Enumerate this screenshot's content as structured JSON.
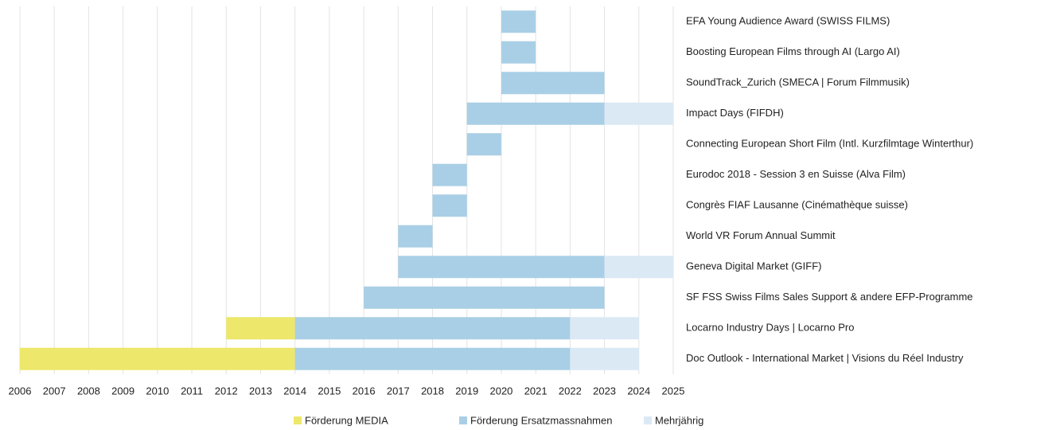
{
  "chart_data": {
    "type": "gantt",
    "categories": [
      "EFA Young Audience Award (SWISS FILMS)",
      "Boosting European Films through AI (Largo AI)",
      "SoundTrack_Zurich (SMECA | Forum Filmmusik)",
      "Impact Days (FIFDH)",
      "Connecting European Short Film (Intl. Kurzfilmtage Winterthur)",
      "Eurodoc 2018 - Session 3 en Suisse (Alva Film)",
      "Congrès FIAF Lausanne (Cinémathèque suisse)",
      "World VR Forum Annual Summit",
      "Geneva Digital Market (GIFF)",
      "SF FSS Swiss Films Sales Support & andere EFP-Programme",
      "Locarno Industry Days | Locarno Pro",
      "Doc Outlook - International Market | Visions du Réel Industry"
    ],
    "series": [
      {
        "name": "Förderung MEDIA",
        "color": "#ede76b",
        "starts": [
          null,
          null,
          null,
          null,
          null,
          null,
          null,
          null,
          null,
          null,
          2012,
          2006
        ],
        "ends": [
          null,
          null,
          null,
          null,
          null,
          null,
          null,
          null,
          null,
          null,
          2014,
          2014
        ]
      },
      {
        "name": "Förderung Ersatzmassnahmen",
        "color": "#a9cfe6",
        "starts": [
          2020,
          2020,
          2020,
          2019,
          2019,
          2018,
          2018,
          2017,
          2017,
          2016,
          2014,
          2014
        ],
        "ends": [
          2021,
          2021,
          2023,
          2023,
          2020,
          2019,
          2019,
          2018,
          2023,
          2023,
          2022,
          2022
        ]
      },
      {
        "name": "Mehrjährig",
        "color": "#dbe9f5",
        "starts": [
          null,
          null,
          null,
          2023,
          null,
          null,
          null,
          null,
          2023,
          null,
          2022,
          2022
        ],
        "ends": [
          null,
          null,
          null,
          2025,
          null,
          null,
          null,
          null,
          2025,
          null,
          2024,
          2024
        ]
      }
    ],
    "xlim": [
      2006,
      2025
    ],
    "xticks": [
      2006,
      2007,
      2008,
      2009,
      2010,
      2011,
      2012,
      2013,
      2014,
      2015,
      2016,
      2017,
      2018,
      2019,
      2020,
      2021,
      2022,
      2023,
      2024,
      2025
    ],
    "grid": true,
    "legend": "bottom"
  }
}
